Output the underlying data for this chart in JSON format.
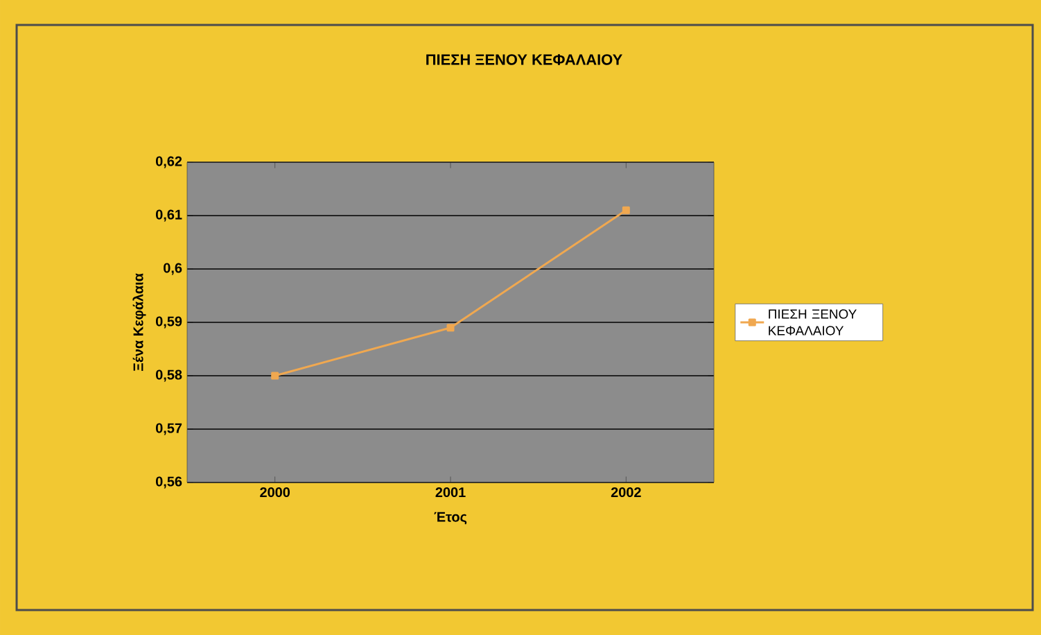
{
  "chart_data": {
    "type": "line",
    "title": "ΠΙΕΣΗ ΞΕΝΟΥ ΚΕΦΑΛΑΙΟΥ",
    "xlabel": "Έτος",
    "ylabel": "Ξένα Κεφάλαια",
    "categories": [
      "2000",
      "2001",
      "2002"
    ],
    "series": [
      {
        "name": "ΠΙΕΣΗ ΞΕΝΟΥ ΚΕΦΑΛΑΙΟΥ",
        "color": "#f0a850",
        "values": [
          0.58,
          0.589,
          0.611
        ]
      }
    ],
    "ylim": [
      0.56,
      0.62
    ],
    "yticks": [
      {
        "value": 0.56,
        "label": "0,56"
      },
      {
        "value": 0.57,
        "label": "0,57"
      },
      {
        "value": 0.58,
        "label": "0,58"
      },
      {
        "value": 0.59,
        "label": "0,59"
      },
      {
        "value": 0.6,
        "label": "0,6"
      },
      {
        "value": 0.61,
        "label": "0,61"
      },
      {
        "value": 0.62,
        "label": "0,62"
      }
    ],
    "grid": "y",
    "legend": "right",
    "marker": "square",
    "line_style": "solid"
  }
}
